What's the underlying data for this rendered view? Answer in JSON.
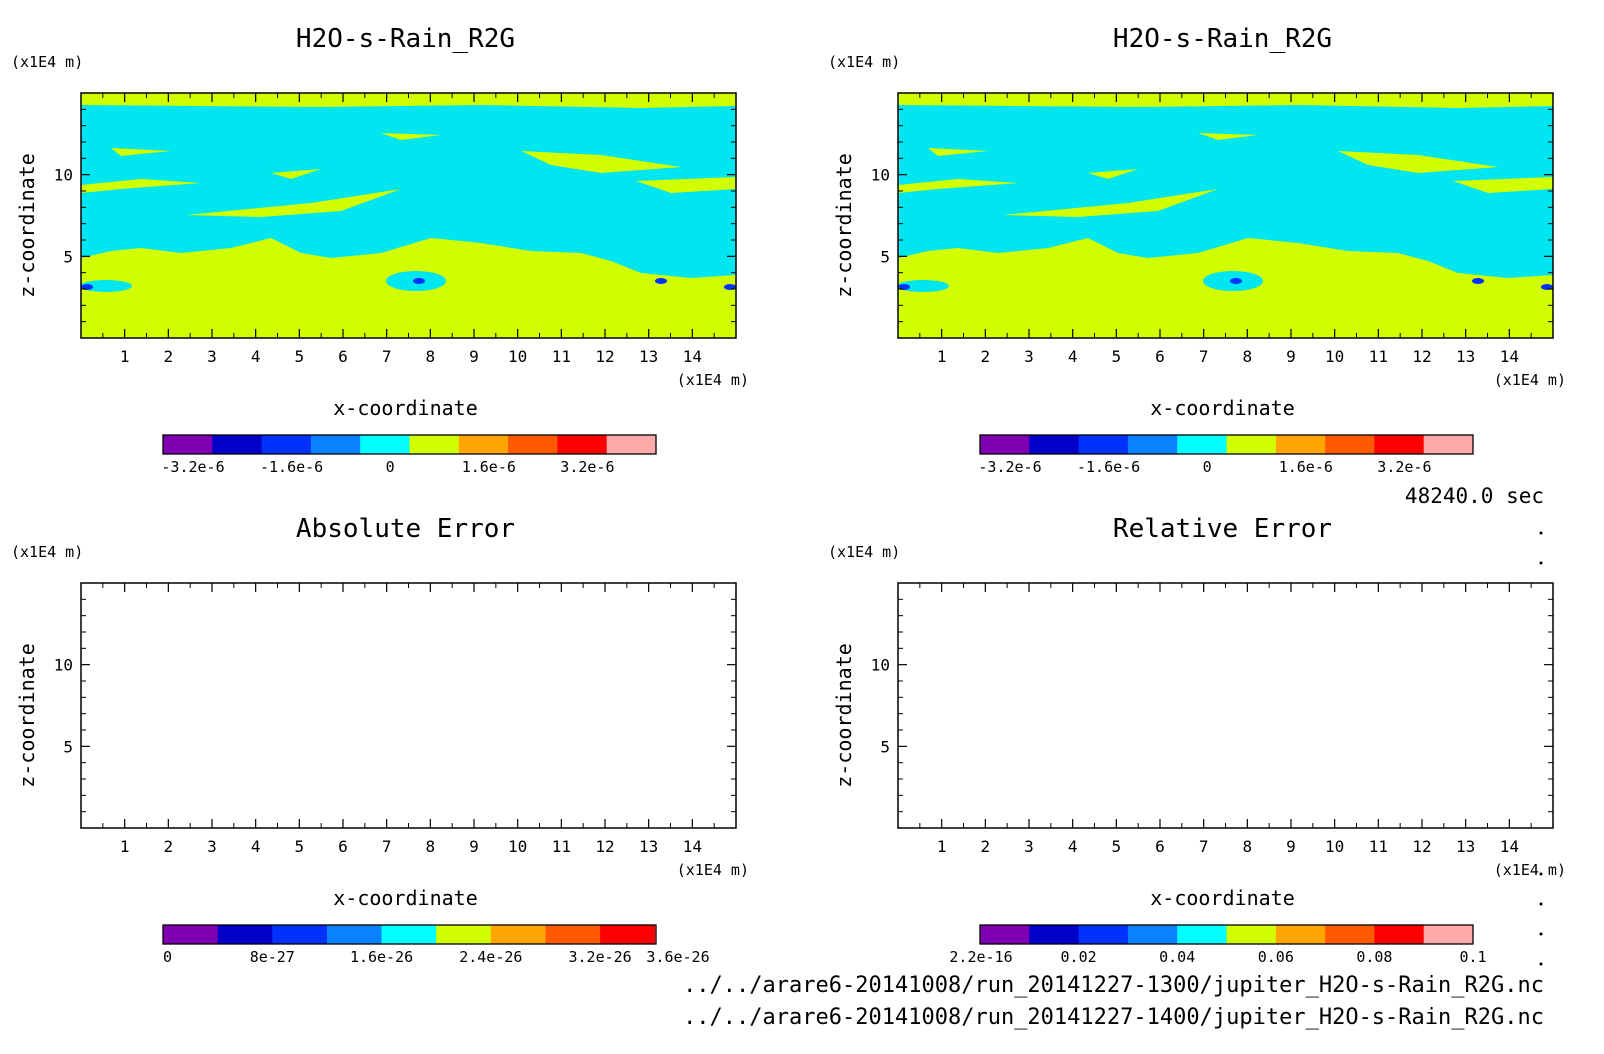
{
  "chart_data": [
    {
      "type": "heatmap",
      "title": "H2O-s-Rain_R2G",
      "xlabel": "x-coordinate",
      "ylabel": "z-coordinate",
      "x_unit": "(x1E4 m)",
      "y_unit": "(x1E4 m)",
      "xlim": [
        0,
        15
      ],
      "ylim": [
        0,
        15
      ],
      "x_ticks": [
        "1",
        "2",
        "3",
        "4",
        "5",
        "6",
        "7",
        "8",
        "9",
        "10",
        "11",
        "12",
        "13",
        "14"
      ],
      "y_ticks": [
        "5",
        "10"
      ],
      "colorbar": {
        "levels": 9,
        "colors": [
          "#7f00b2",
          "#0000c8",
          "#0032ff",
          "#0a82ff",
          "#00ffff",
          "#d2ff00",
          "#ffa500",
          "#ff5a00",
          "#ff0000",
          "#ffaaaa"
        ],
        "labels": [
          "-3.2e-6",
          "-1.6e-6",
          "0",
          "1.6e-6",
          "3.2e-6"
        ]
      },
      "dominant_fill": {
        "upper": "#00e6f0",
        "lower": "#d2ff00"
      }
    },
    {
      "type": "heatmap",
      "title": "H2O-s-Rain_R2G",
      "xlabel": "x-coordinate",
      "ylabel": "z-coordinate",
      "x_unit": "(x1E4 m)",
      "y_unit": "(x1E4 m)",
      "xlim": [
        0,
        15
      ],
      "ylim": [
        0,
        15
      ],
      "x_ticks": [
        "1",
        "2",
        "3",
        "4",
        "5",
        "6",
        "7",
        "8",
        "9",
        "10",
        "11",
        "12",
        "13",
        "14"
      ],
      "y_ticks": [
        "5",
        "10"
      ],
      "colorbar": {
        "levels": 9,
        "colors": [
          "#7f00b2",
          "#0000c8",
          "#0032ff",
          "#0a82ff",
          "#00ffff",
          "#d2ff00",
          "#ffa500",
          "#ff5a00",
          "#ff0000",
          "#ffaaaa"
        ],
        "labels": [
          "-3.2e-6",
          "-1.6e-6",
          "0",
          "1.6e-6",
          "3.2e-6"
        ]
      },
      "dominant_fill": {
        "upper": "#00e6f0",
        "lower": "#d2ff00"
      }
    },
    {
      "type": "heatmap",
      "title": "Absolute Error",
      "xlabel": "x-coordinate",
      "ylabel": "z-coordinate",
      "x_unit": "(x1E4 m)",
      "y_unit": "(x1E4 m)",
      "xlim": [
        0,
        15
      ],
      "ylim": [
        0,
        15
      ],
      "x_ticks": [
        "1",
        "2",
        "3",
        "4",
        "5",
        "6",
        "7",
        "8",
        "9",
        "10",
        "11",
        "12",
        "13",
        "14"
      ],
      "y_ticks": [
        "5",
        "10"
      ],
      "colorbar": {
        "levels": 9,
        "colors": [
          "#7f00b2",
          "#0000c8",
          "#0032ff",
          "#0a82ff",
          "#00ffff",
          "#d2ff00",
          "#ffa500",
          "#ff5a00",
          "#ff0000",
          "#ffaaaa"
        ],
        "labels": [
          "0",
          "8e-27",
          "1.6e-26",
          "2.4e-26",
          "3.2e-26",
          "3.6e-26"
        ]
      },
      "dominant_fill": {
        "upper": "#ffffff",
        "lower": "#ffffff"
      }
    },
    {
      "type": "heatmap",
      "title": "Relative Error",
      "xlabel": "x-coordinate",
      "ylabel": "z-coordinate",
      "x_unit": "(x1E4 m)",
      "y_unit": "(x1E4 m)",
      "xlim": [
        0,
        15
      ],
      "ylim": [
        0,
        15
      ],
      "x_ticks": [
        "1",
        "2",
        "3",
        "4",
        "5",
        "6",
        "7",
        "8",
        "9",
        "10",
        "11",
        "12",
        "13",
        "14"
      ],
      "y_ticks": [
        "5",
        "10"
      ],
      "colorbar": {
        "levels": 10,
        "colors": [
          "#7f00b2",
          "#0000c8",
          "#0032ff",
          "#0a82ff",
          "#00ffff",
          "#d2ff00",
          "#ffa500",
          "#ff5a00",
          "#ff0000",
          "#ffaaaa"
        ],
        "labels": [
          "2.2e-16",
          "0.02",
          "0.04",
          "0.06",
          "0.08",
          "0.1"
        ]
      },
      "dominant_fill": {
        "upper": "#ffffff",
        "lower": "#ffffff"
      }
    }
  ],
  "time_label": "48240.0 sec",
  "files": [
    "../../arare6-20141008/run_20141227-1300/jupiter_H2O-s-Rain_R2G.nc",
    "../../arare6-20141008/run_20141227-1400/jupiter_H2O-s-Rain_R2G.nc"
  ]
}
